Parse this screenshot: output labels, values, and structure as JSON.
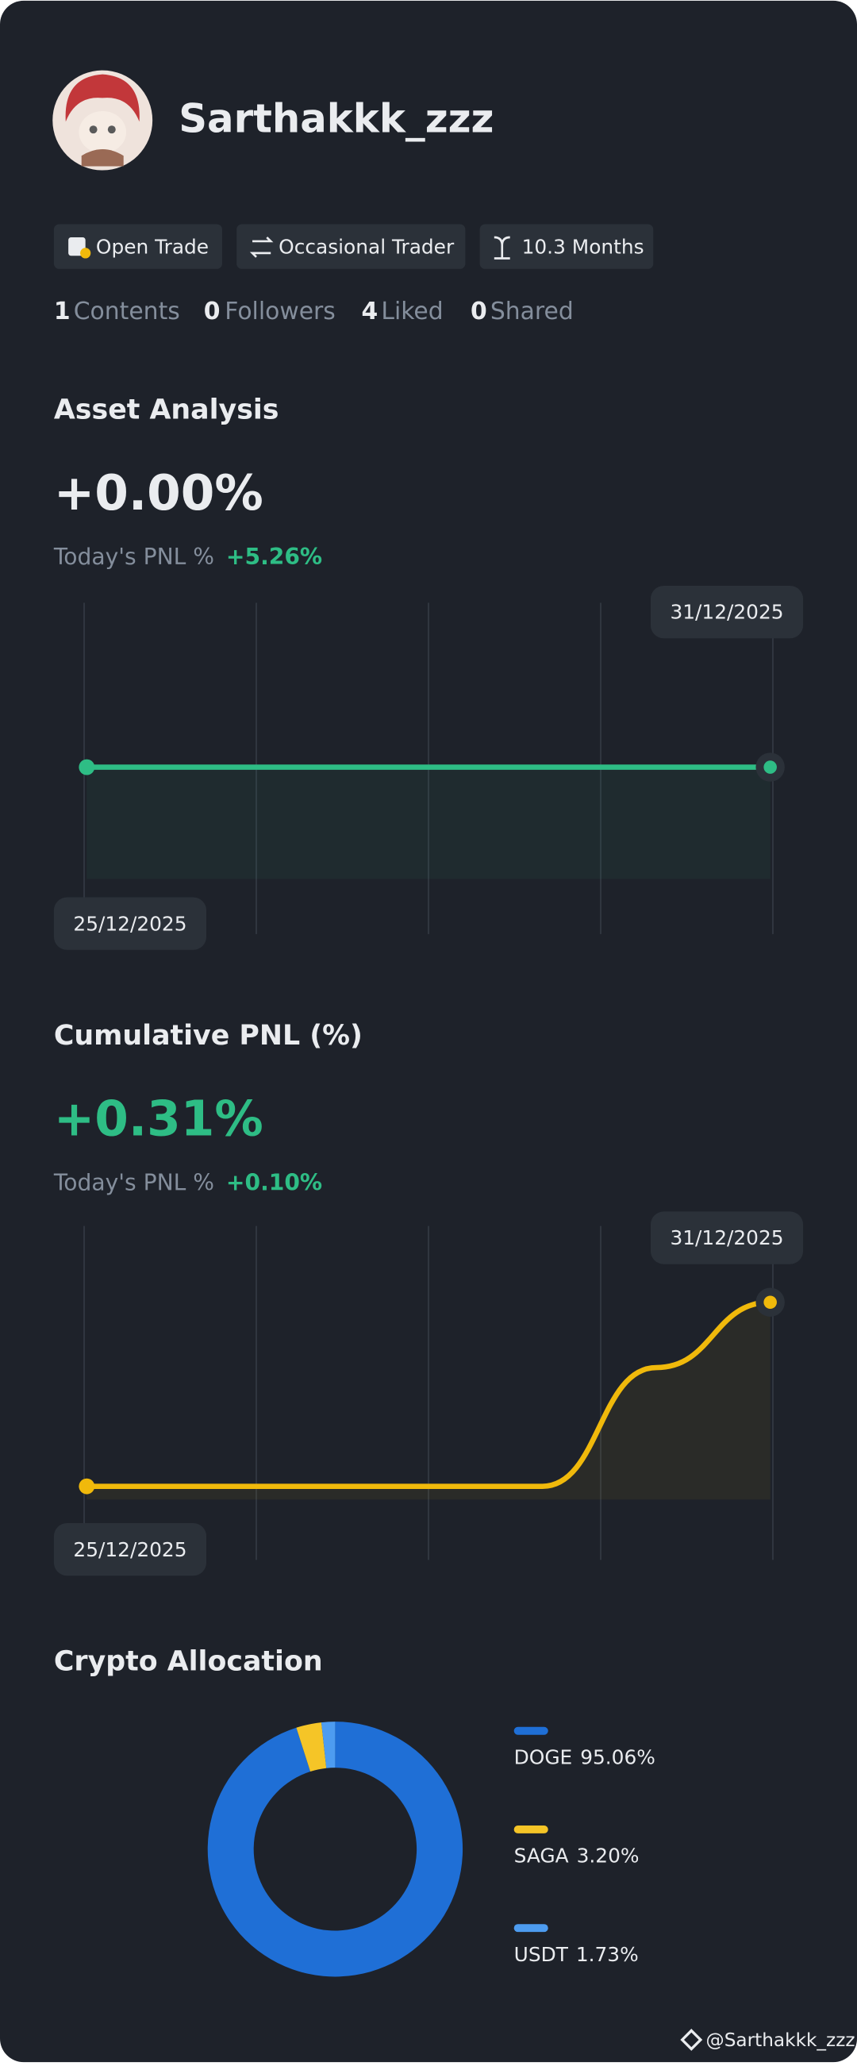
{
  "profile": {
    "username": "Sarthakkk_zzz",
    "badges": [
      "Open Trade",
      "Occasional Trader",
      "10.3 Months"
    ],
    "stats": [
      {
        "count": 1,
        "label": "Contents"
      },
      {
        "count": 0,
        "label": "Followers"
      },
      {
        "count": 4,
        "label": "Liked"
      },
      {
        "count": 0,
        "label": "Shared"
      }
    ]
  },
  "asset_analysis": {
    "title": "Asset Analysis",
    "value": "+0.00%",
    "today_label": "Today's PNL %",
    "today_value": "+5.26%",
    "chart": {
      "type": "line",
      "x": [
        "25/12/2025",
        null,
        null,
        null,
        null,
        null,
        "31/12/2025"
      ],
      "values": [
        0,
        0,
        0,
        0,
        0,
        0,
        0
      ],
      "color": "#2ebd85"
    }
  },
  "cumulative_pnl": {
    "title": "Cumulative PNL (%)",
    "value": "+0.31%",
    "today_label": "Today's PNL %",
    "today_value": "+0.10%",
    "chart": {
      "type": "line",
      "x": [
        "25/12/2025",
        null,
        null,
        null,
        null,
        null,
        "31/12/2025"
      ],
      "values": [
        0,
        0,
        0,
        0,
        0,
        0.2,
        0.31
      ],
      "color": "#f0b90b"
    }
  },
  "crypto_allocation": {
    "title": "Crypto Allocation",
    "chart": {
      "type": "donut",
      "categories": [
        "DOGE",
        "SAGA",
        "USDT"
      ],
      "values": [
        95.06,
        3.2,
        1.73
      ],
      "value_labels": [
        "95.06%",
        "3.20%",
        "1.73%"
      ],
      "colors": [
        "#1f6fd6",
        "#f5c527",
        "#4d9cf0"
      ]
    }
  },
  "watermark": "@Sarthakkk_zzz"
}
